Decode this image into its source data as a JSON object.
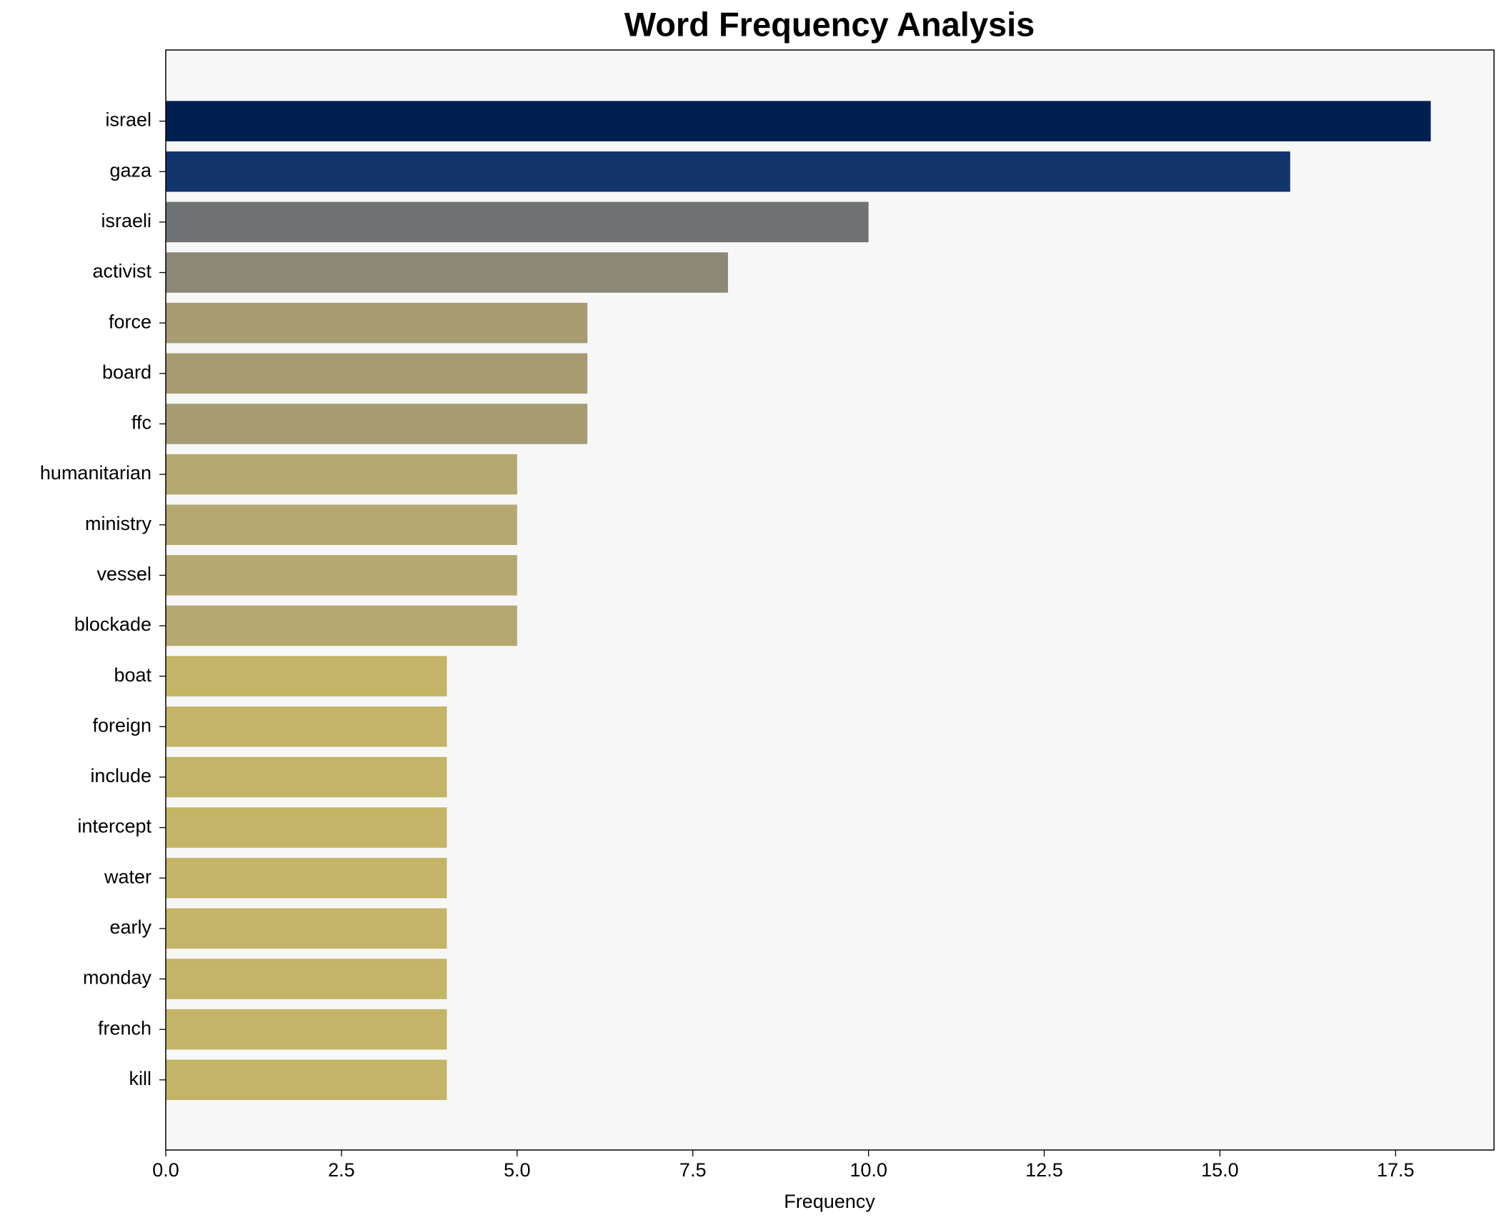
{
  "chart_data": {
    "type": "barh",
    "title": "Word Frequency Analysis",
    "xlabel": "Frequency",
    "categories": [
      "israel",
      "gaza",
      "israeli",
      "activist",
      "force",
      "board",
      "ffc",
      "humanitarian",
      "ministry",
      "vessel",
      "blockade",
      "boat",
      "foreign",
      "include",
      "intercept",
      "water",
      "early",
      "monday",
      "french",
      "kill"
    ],
    "values": [
      18,
      16,
      10,
      8,
      6,
      6,
      6,
      5,
      5,
      5,
      5,
      4,
      4,
      4,
      4,
      4,
      4,
      4,
      4,
      4
    ],
    "colors": [
      "#002051",
      "#13336d",
      "#707173",
      "#8b8878",
      "#a59c74",
      "#a59c74",
      "#a59c74",
      "#b5a871",
      "#b5a871",
      "#b5a871",
      "#b5a871",
      "#c4b468",
      "#c4b468",
      "#c4b468",
      "#c4b468",
      "#c4b468",
      "#c4b468",
      "#c4b468",
      "#c4b468",
      "#c4b468"
    ],
    "xlim": [
      0,
      18.9
    ],
    "xticks": [
      {
        "value": 0,
        "label": "0.0"
      },
      {
        "value": 2.5,
        "label": "2.5"
      },
      {
        "value": 5,
        "label": "5.0"
      },
      {
        "value": 7.5,
        "label": "7.5"
      },
      {
        "value": 10,
        "label": "10.0"
      },
      {
        "value": 12.5,
        "label": "12.5"
      },
      {
        "value": 15,
        "label": "15.0"
      },
      {
        "value": 17.5,
        "label": "17.5"
      }
    ]
  }
}
